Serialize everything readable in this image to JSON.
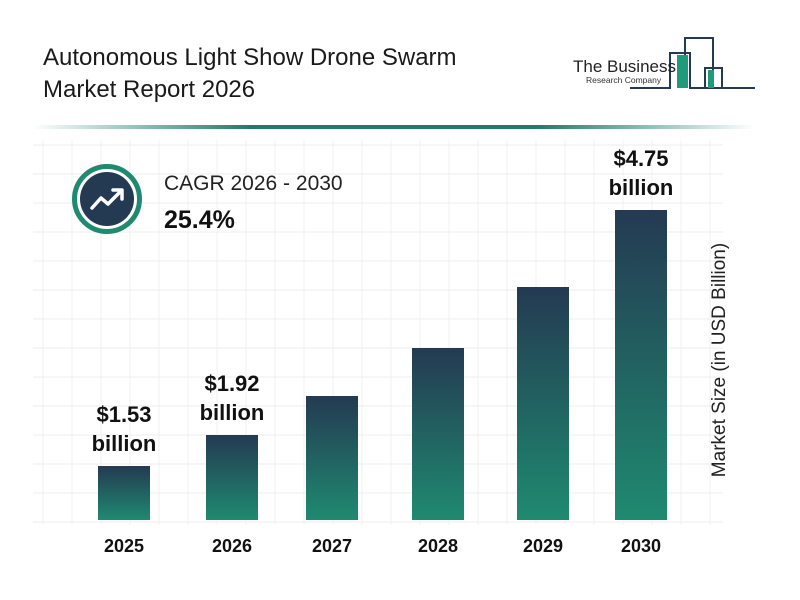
{
  "header": {
    "title_line1": "Autonomous Light Show Drone Swarm",
    "title_line2": "Market Report 2026"
  },
  "logo": {
    "line1": "The Business",
    "line2": "Research Company"
  },
  "cagr": {
    "label": "CAGR 2026 - 2030",
    "value": "25.4%",
    "icon": "trending-up-icon"
  },
  "colors": {
    "bar_top": "#243a52",
    "bar_bottom": "#1f8a70",
    "accent": "#1f7d6b"
  },
  "chart_data": {
    "type": "bar",
    "categories": [
      "2025",
      "2026",
      "2027",
      "2028",
      "2029",
      "2030"
    ],
    "values": [
      1.53,
      1.92,
      2.41,
      3.02,
      3.79,
      4.75
    ],
    "data_labels": [
      {
        "index": 0,
        "value": "$1.53",
        "unit": "billion"
      },
      {
        "index": 1,
        "value": "$1.92",
        "unit": "billion"
      },
      {
        "index": 5,
        "value": "$4.75",
        "unit": "billion"
      }
    ],
    "xlabel": "",
    "ylabel": "Market Size (in USD Billion)",
    "grid": true
  }
}
